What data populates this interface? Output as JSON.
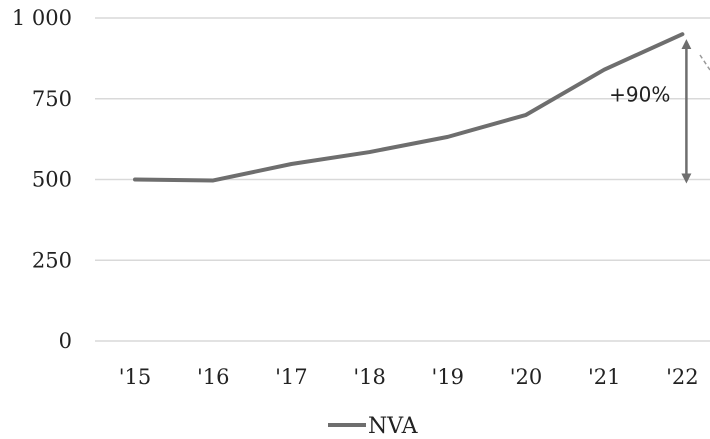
{
  "chart_data": {
    "type": "line",
    "categories": [
      "'15",
      "'16",
      "'17",
      "'18",
      "'19",
      "'20",
      "'21",
      "'22"
    ],
    "series": [
      {
        "name": "NVA",
        "values": [
          500,
          497,
          548,
          585,
          632,
          700,
          840,
          950
        ]
      }
    ],
    "ylim": [
      0,
      1000
    ],
    "yticks": [
      0,
      250,
      500,
      750,
      1000
    ],
    "ytick_labels": [
      "0",
      "250",
      "500",
      "750",
      "1 000"
    ],
    "grid": true,
    "legend": "bottom",
    "annotation": {
      "text": "+90%",
      "from": 500,
      "to": 950,
      "at": "'22"
    },
    "colors": {
      "line": "#6e6e6e",
      "grid": "#d9d9d9",
      "arrow": "#6e6e6e"
    }
  }
}
